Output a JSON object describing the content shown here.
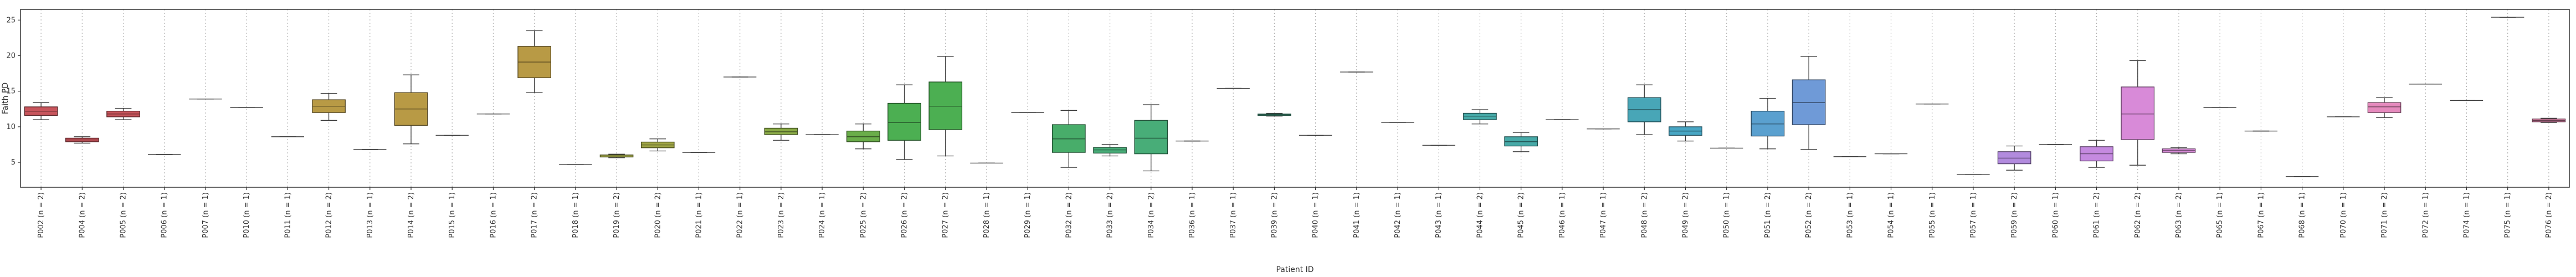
{
  "chart_data": {
    "type": "box",
    "xlabel": "Patient ID",
    "ylabel": "Faith PD",
    "ylim": [
      1.5,
      26.5
    ],
    "yticks": [
      5,
      10,
      15,
      20,
      25
    ],
    "grid": "vertical dotted",
    "legend": "none",
    "categories": [
      {
        "label": "P002 (n = 2)",
        "color": "#c8555c",
        "q1": 11.6,
        "med": 12.2,
        "q3": 12.8,
        "wlo": 11.0,
        "whi": 13.4
      },
      {
        "label": "P004 (n = 2)",
        "color": "#c8555c",
        "q1": 7.9,
        "med": 8.15,
        "q3": 8.4,
        "wlo": 7.7,
        "whi": 8.6
      },
      {
        "label": "P005 (n = 2)",
        "color": "#c8555c",
        "q1": 11.4,
        "med": 11.8,
        "q3": 12.2,
        "wlo": 11.0,
        "whi": 12.6
      },
      {
        "label": "P006 (n = 1)",
        "color": "#c8555c",
        "q1": 6.1,
        "med": 6.1,
        "q3": 6.1,
        "wlo": 6.1,
        "whi": 6.1
      },
      {
        "label": "P007 (n = 1)",
        "color": "#c0704b",
        "q1": 13.9,
        "med": 13.9,
        "q3": 13.9,
        "wlo": 13.9,
        "whi": 13.9
      },
      {
        "label": "P010 (n = 1)",
        "color": "#c0704b",
        "q1": 12.7,
        "med": 12.7,
        "q3": 12.7,
        "wlo": 12.7,
        "whi": 12.7
      },
      {
        "label": "P011 (n = 1)",
        "color": "#c0704b",
        "q1": 8.6,
        "med": 8.6,
        "q3": 8.6,
        "wlo": 8.6,
        "whi": 8.6
      },
      {
        "label": "P012 (n = 2)",
        "color": "#b89a45",
        "q1": 12.0,
        "med": 12.9,
        "q3": 13.8,
        "wlo": 10.9,
        "whi": 14.7
      },
      {
        "label": "P013 (n = 1)",
        "color": "#b89a45",
        "q1": 6.8,
        "med": 6.8,
        "q3": 6.8,
        "wlo": 6.8,
        "whi": 6.8
      },
      {
        "label": "P014 (n = 2)",
        "color": "#b89a45",
        "q1": 10.2,
        "med": 12.5,
        "q3": 14.8,
        "wlo": 7.6,
        "whi": 17.3
      },
      {
        "label": "P015 (n = 1)",
        "color": "#b89a45",
        "q1": 8.8,
        "med": 8.8,
        "q3": 8.8,
        "wlo": 8.8,
        "whi": 8.8
      },
      {
        "label": "P016 (n = 1)",
        "color": "#b89a45",
        "q1": 11.8,
        "med": 11.8,
        "q3": 11.8,
        "wlo": 11.8,
        "whi": 11.8
      },
      {
        "label": "P017 (n = 2)",
        "color": "#b89a45",
        "q1": 16.9,
        "med": 19.1,
        "q3": 21.3,
        "wlo": 14.8,
        "whi": 23.5
      },
      {
        "label": "P018 (n = 1)",
        "color": "#b89a45",
        "q1": 4.7,
        "med": 4.7,
        "q3": 4.7,
        "wlo": 4.7,
        "whi": 4.7
      },
      {
        "label": "P019 (n = 2)",
        "color": "#a1a746",
        "q1": 5.75,
        "med": 5.9,
        "q3": 6.05,
        "wlo": 5.65,
        "whi": 6.15
      },
      {
        "label": "P020 (n = 2)",
        "color": "#a1a746",
        "q1": 7.05,
        "med": 7.45,
        "q3": 7.85,
        "wlo": 6.6,
        "whi": 8.3
      },
      {
        "label": "P021 (n = 1)",
        "color": "#a1a746",
        "q1": 6.4,
        "med": 6.4,
        "q3": 6.4,
        "wlo": 6.4,
        "whi": 6.4
      },
      {
        "label": "P022 (n = 1)",
        "color": "#8aab46",
        "q1": 17.0,
        "med": 17.0,
        "q3": 17.0,
        "wlo": 17.0,
        "whi": 17.0
      },
      {
        "label": "P023 (n = 2)",
        "color": "#8aab46",
        "q1": 8.9,
        "med": 9.3,
        "q3": 9.8,
        "wlo": 8.1,
        "whi": 10.4
      },
      {
        "label": "P024 (n = 1)",
        "color": "#8aab46",
        "q1": 8.9,
        "med": 8.9,
        "q3": 8.9,
        "wlo": 8.9,
        "whi": 8.9
      },
      {
        "label": "P025 (n = 2)",
        "color": "#6aad4a",
        "q1": 7.9,
        "med": 8.6,
        "q3": 9.4,
        "wlo": 6.9,
        "whi": 10.4
      },
      {
        "label": "P026 (n = 2)",
        "color": "#4caf52",
        "q1": 8.1,
        "med": 10.6,
        "q3": 13.3,
        "wlo": 5.4,
        "whi": 15.9
      },
      {
        "label": "P027 (n = 2)",
        "color": "#4caf52",
        "q1": 9.6,
        "med": 12.9,
        "q3": 16.3,
        "wlo": 5.9,
        "whi": 19.9
      },
      {
        "label": "P028 (n = 1)",
        "color": "#4caf52",
        "q1": 4.9,
        "med": 4.9,
        "q3": 4.9,
        "wlo": 4.9,
        "whi": 4.9
      },
      {
        "label": "P029 (n = 1)",
        "color": "#48ad6a",
        "q1": 12.0,
        "med": 12.0,
        "q3": 12.0,
        "wlo": 12.0,
        "whi": 12.0
      },
      {
        "label": "P032 (n = 2)",
        "color": "#48ad6a",
        "q1": 6.4,
        "med": 8.3,
        "q3": 10.3,
        "wlo": 4.3,
        "whi": 12.3
      },
      {
        "label": "P033 (n = 2)",
        "color": "#48ad78",
        "q1": 6.3,
        "med": 6.75,
        "q3": 7.1,
        "wlo": 5.9,
        "whi": 7.5
      },
      {
        "label": "P034 (n = 2)",
        "color": "#48ad78",
        "q1": 6.2,
        "med": 8.4,
        "q3": 10.9,
        "wlo": 3.8,
        "whi": 13.1
      },
      {
        "label": "P036 (n = 1)",
        "color": "#48ad78",
        "q1": 8.0,
        "med": 8.0,
        "q3": 8.0,
        "wlo": 8.0,
        "whi": 8.0
      },
      {
        "label": "P037 (n = 1)",
        "color": "#48ad8c",
        "q1": 15.4,
        "med": 15.4,
        "q3": 15.4,
        "wlo": 15.4,
        "whi": 15.4
      },
      {
        "label": "P039 (n = 2)",
        "color": "#48ad8c",
        "q1": 11.6,
        "med": 11.7,
        "q3": 11.8,
        "wlo": 11.5,
        "whi": 11.9
      },
      {
        "label": "P040 (n = 1)",
        "color": "#48ad8c",
        "q1": 8.8,
        "med": 8.8,
        "q3": 8.8,
        "wlo": 8.8,
        "whi": 8.8
      },
      {
        "label": "P041 (n = 1)",
        "color": "#48ad9a",
        "q1": 17.7,
        "med": 17.7,
        "q3": 17.7,
        "wlo": 17.7,
        "whi": 17.7
      },
      {
        "label": "P042 (n = 1)",
        "color": "#48ad9a",
        "q1": 10.6,
        "med": 10.6,
        "q3": 10.6,
        "wlo": 10.6,
        "whi": 10.6
      },
      {
        "label": "P043 (n = 1)",
        "color": "#48ad9a",
        "q1": 7.4,
        "med": 7.4,
        "q3": 7.4,
        "wlo": 7.4,
        "whi": 7.4
      },
      {
        "label": "P044 (n = 2)",
        "color": "#47aaa8",
        "q1": 11.0,
        "med": 11.5,
        "q3": 11.9,
        "wlo": 10.4,
        "whi": 12.4
      },
      {
        "label": "P045 (n = 2)",
        "color": "#47aaa8",
        "q1": 7.3,
        "med": 7.9,
        "q3": 8.6,
        "wlo": 6.5,
        "whi": 9.2
      },
      {
        "label": "P046 (n = 1)",
        "color": "#47aaa8",
        "q1": 11.0,
        "med": 11.0,
        "q3": 11.0,
        "wlo": 11.0,
        "whi": 11.0
      },
      {
        "label": "P047 (n = 1)",
        "color": "#48a6b7",
        "q1": 9.7,
        "med": 9.7,
        "q3": 9.7,
        "wlo": 9.7,
        "whi": 9.7
      },
      {
        "label": "P048 (n = 2)",
        "color": "#48a6b7",
        "q1": 10.7,
        "med": 12.4,
        "q3": 14.1,
        "wlo": 8.9,
        "whi": 15.9
      },
      {
        "label": "P049 (n = 2)",
        "color": "#48a6c4",
        "q1": 8.8,
        "med": 9.4,
        "q3": 10.0,
        "wlo": 8.0,
        "whi": 10.7
      },
      {
        "label": "P050 (n = 1)",
        "color": "#48a6c4",
        "q1": 7.0,
        "med": 7.0,
        "q3": 7.0,
        "wlo": 7.0,
        "whi": 7.0
      },
      {
        "label": "P051 (n = 2)",
        "color": "#5aa0cf",
        "q1": 8.7,
        "med": 10.4,
        "q3": 12.2,
        "wlo": 6.9,
        "whi": 14.0
      },
      {
        "label": "P052 (n = 2)",
        "color": "#6f9ad7",
        "q1": 10.3,
        "med": 13.4,
        "q3": 16.6,
        "wlo": 6.8,
        "whi": 19.9
      },
      {
        "label": "P053 (n = 1)",
        "color": "#6f9ad7",
        "q1": 5.8,
        "med": 5.8,
        "q3": 5.8,
        "wlo": 5.8,
        "whi": 5.8
      },
      {
        "label": "P054 (n = 1)",
        "color": "#8b94da",
        "q1": 6.2,
        "med": 6.2,
        "q3": 6.2,
        "wlo": 6.2,
        "whi": 6.2
      },
      {
        "label": "P055 (n = 1)",
        "color": "#8b94da",
        "q1": 13.2,
        "med": 13.2,
        "q3": 13.2,
        "wlo": 13.2,
        "whi": 13.2
      },
      {
        "label": "P057 (n = 1)",
        "color": "#a08cde",
        "q1": 3.3,
        "med": 3.3,
        "q3": 3.3,
        "wlo": 3.3,
        "whi": 3.3
      },
      {
        "label": "P059 (n = 2)",
        "color": "#b28bde",
        "q1": 4.8,
        "med": 5.6,
        "q3": 6.5,
        "wlo": 3.9,
        "whi": 7.3
      },
      {
        "label": "P060 (n = 1)",
        "color": "#b28bde",
        "q1": 7.5,
        "med": 7.5,
        "q3": 7.5,
        "wlo": 7.5,
        "whi": 7.5
      },
      {
        "label": "P061 (n = 2)",
        "color": "#c58ae0",
        "q1": 5.2,
        "med": 6.2,
        "q3": 7.2,
        "wlo": 4.3,
        "whi": 8.1
      },
      {
        "label": "P062 (n = 2)",
        "color": "#d88ad8",
        "q1": 8.2,
        "med": 11.8,
        "q3": 15.6,
        "wlo": 4.6,
        "whi": 19.3
      },
      {
        "label": "P063 (n = 2)",
        "color": "#d88ad8",
        "q1": 6.4,
        "med": 6.65,
        "q3": 6.9,
        "wlo": 6.2,
        "whi": 7.1
      },
      {
        "label": "P065 (n = 1)",
        "color": "#d88ad8",
        "q1": 12.7,
        "med": 12.7,
        "q3": 12.7,
        "wlo": 12.7,
        "whi": 12.7
      },
      {
        "label": "P067 (n = 1)",
        "color": "#e08ac8",
        "q1": 9.4,
        "med": 9.4,
        "q3": 9.4,
        "wlo": 9.4,
        "whi": 9.4
      },
      {
        "label": "P068 (n = 1)",
        "color": "#e08ac8",
        "q1": 3.0,
        "med": 3.0,
        "q3": 3.0,
        "wlo": 3.0,
        "whi": 3.0
      },
      {
        "label": "P070 (n = 1)",
        "color": "#e08ac8",
        "q1": 11.4,
        "med": 11.4,
        "q3": 11.4,
        "wlo": 11.4,
        "whi": 11.4
      },
      {
        "label": "P071 (n = 2)",
        "color": "#e58abd",
        "q1": 12.0,
        "med": 12.8,
        "q3": 13.4,
        "wlo": 11.3,
        "whi": 14.1
      },
      {
        "label": "P072 (n = 1)",
        "color": "#e58abd",
        "q1": 16.0,
        "med": 16.0,
        "q3": 16.0,
        "wlo": 16.0,
        "whi": 16.0
      },
      {
        "label": "P074 (n = 1)",
        "color": "#e58abd",
        "q1": 13.7,
        "med": 13.7,
        "q3": 13.7,
        "wlo": 13.7,
        "whi": 13.7
      },
      {
        "label": "P075 (n = 1)",
        "color": "#e58abd",
        "q1": 25.4,
        "med": 25.4,
        "q3": 25.4,
        "wlo": 25.4,
        "whi": 25.4
      },
      {
        "label": "P076 (n = 2)",
        "color": "#e58ab0",
        "q1": 10.7,
        "med": 10.9,
        "q3": 11.1,
        "wlo": 10.6,
        "whi": 11.2
      }
    ]
  }
}
